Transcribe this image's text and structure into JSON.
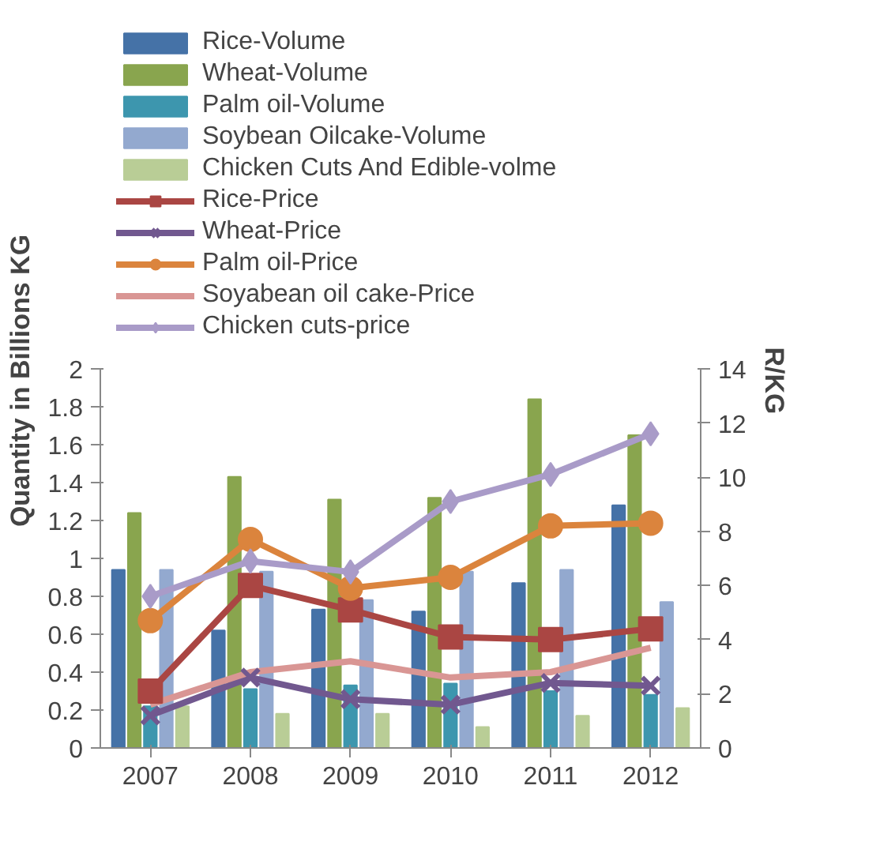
{
  "chart_data": {
    "type": "bar",
    "categories": [
      "2007",
      "2008",
      "2009",
      "2010",
      "2011",
      "2012"
    ],
    "ylabel": "Quantity in Billions KG",
    "y2label": "R/KG",
    "ylim": [
      0,
      2
    ],
    "yticks": [
      0,
      0.2,
      0.4,
      0.6,
      0.8,
      1,
      1.2,
      1.4,
      1.6,
      1.8,
      2
    ],
    "y2lim": [
      0,
      14
    ],
    "y2ticks": [
      0,
      2,
      4,
      6,
      8,
      10,
      12,
      14
    ],
    "grid": false,
    "legend": "top",
    "series": [
      {
        "name": "Rice-Volume",
        "color": "#4572a7",
        "values": [
          0.94,
          0.62,
          0.73,
          0.72,
          0.87,
          1.28
        ]
      },
      {
        "name": "Wheat-Volume",
        "color": "#89a54e",
        "values": [
          1.24,
          1.43,
          1.31,
          1.32,
          1.84,
          1.65
        ]
      },
      {
        "name": "Palm oil-Volume",
        "color": "#3d96ae",
        "values": [
          0.22,
          0.31,
          0.33,
          0.34,
          0.3,
          0.28
        ]
      },
      {
        "name": "Soybean Oilcake-Volume",
        "color": "#93a9cf",
        "values": [
          0.94,
          0.93,
          0.78,
          0.93,
          0.94,
          0.77
        ]
      },
      {
        "name": "Chicken Cuts And Edible-volme",
        "color": "#b9cd96",
        "values": [
          0.22,
          0.18,
          0.18,
          0.11,
          0.17,
          0.21
        ]
      },
      {
        "name": "Rice-Price",
        "type": "line",
        "axis": "y2",
        "marker": "square",
        "color": "#aa4643",
        "values": [
          2.1,
          6.0,
          5.1,
          4.1,
          4.0,
          4.4
        ]
      },
      {
        "name": "Wheat-Price",
        "type": "line",
        "axis": "y2",
        "marker": "cross",
        "color": "#71588f",
        "values": [
          1.2,
          2.6,
          1.8,
          1.6,
          2.4,
          2.3
        ]
      },
      {
        "name": "Palm oil-Price",
        "type": "line",
        "axis": "y2",
        "marker": "circle",
        "color": "#db843d",
        "values": [
          4.7,
          7.7,
          5.9,
          6.3,
          8.2,
          8.3
        ]
      },
      {
        "name": "Soyabean oil cake-Price",
        "type": "line",
        "axis": "y2",
        "marker": "none",
        "color": "#d99694",
        "values": [
          1.6,
          2.8,
          3.2,
          2.6,
          2.8,
          3.7
        ]
      },
      {
        "name": "Chicken cuts-price",
        "type": "line",
        "axis": "y2",
        "marker": "diamond",
        "color": "#a99bc8",
        "values": [
          5.6,
          6.9,
          6.5,
          9.1,
          10.1,
          11.6
        ]
      }
    ]
  }
}
